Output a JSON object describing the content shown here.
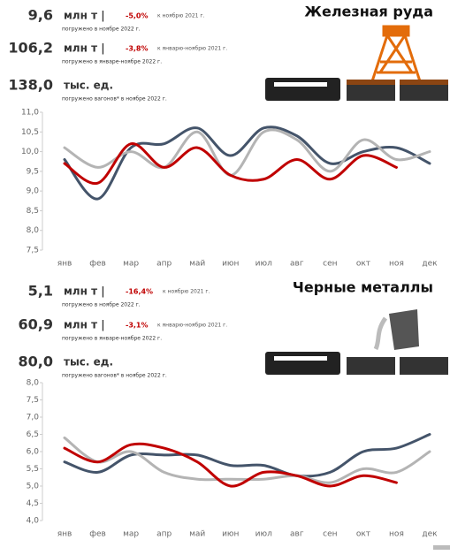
{
  "panels": [
    {
      "title": "Железная руда",
      "stats": [
        {
          "value": "9,6",
          "unit": "млн т |",
          "change": "-5,0%",
          "change_note": "к ноябрю 2021 г.",
          "note": "погружено в ноябре 2022 г."
        },
        {
          "value": "106,2",
          "unit": "млн т |",
          "change": "-3,8%",
          "change_note": "к январю-ноябрю 2021 г.",
          "note": "погружено в январе-ноябре 2022 г."
        },
        {
          "value": "138,0",
          "unit": "тыс. ед.",
          "note": "погружено вагонов* в ноябре 2022 г."
        }
      ]
    },
    {
      "title": "Черные металлы",
      "stats": [
        {
          "value": "5,1",
          "unit": "млн т |",
          "change": "-16,4%",
          "change_note": "к ноябрю 2021 г.",
          "note": "погружено в ноябре 2022 г."
        },
        {
          "value": "60,9",
          "unit": "млн т |",
          "change": "-3,1%",
          "change_note": "к январю-ноябрю 2021 г.",
          "note": "погружено в январе-ноябре 2022 г."
        },
        {
          "value": "80,0",
          "unit": "тыс. ед.",
          "note": "погружено вагонов* в ноябре 2022 г."
        }
      ]
    }
  ],
  "chart_data": [
    {
      "type": "line",
      "categories": [
        "янв",
        "фев",
        "мар",
        "апр",
        "май",
        "июн",
        "июл",
        "авг",
        "сен",
        "окт",
        "ноя",
        "дек"
      ],
      "ylim": [
        7.5,
        11.0
      ],
      "yticks": [
        {
          "value": 7.5,
          "label": "7,5"
        },
        {
          "value": 8.0,
          "label": "8,0"
        },
        {
          "value": 8.5,
          "label": "8,5"
        },
        {
          "value": 9.0,
          "label": "9,0"
        },
        {
          "value": 9.5,
          "label": "9,5"
        },
        {
          "value": 10.0,
          "label": "10,0"
        },
        {
          "value": 10.5,
          "label": "10,5"
        },
        {
          "value": 11.0,
          "label": "11,0"
        }
      ],
      "series": [
        {
          "color": "#44546a",
          "values": [
            9.8,
            8.8,
            10.1,
            10.2,
            10.6,
            9.9,
            10.6,
            10.4,
            9.7,
            10.0,
            10.1,
            9.7
          ]
        },
        {
          "color": "#b4b4b4",
          "values": [
            10.1,
            9.6,
            10.0,
            9.6,
            10.5,
            9.4,
            10.5,
            10.3,
            9.5,
            10.3,
            9.8,
            10.0
          ]
        },
        {
          "color": "#c00000",
          "values": [
            9.7,
            9.2,
            10.2,
            9.6,
            10.1,
            9.4,
            9.3,
            9.8,
            9.3,
            9.9,
            9.6,
            null
          ]
        }
      ]
    },
    {
      "type": "line",
      "categories": [
        "янв",
        "фев",
        "мар",
        "апр",
        "май",
        "июн",
        "июл",
        "авг",
        "сен",
        "окт",
        "ноя",
        "дек"
      ],
      "ylim": [
        4.0,
        8.0
      ],
      "yticks": [
        {
          "value": 4.0,
          "label": "4,0"
        },
        {
          "value": 4.5,
          "label": "4,5"
        },
        {
          "value": 5.0,
          "label": "5,0"
        },
        {
          "value": 5.5,
          "label": "5,5"
        },
        {
          "value": 6.0,
          "label": "6,0"
        },
        {
          "value": 6.5,
          "label": "6,5"
        },
        {
          "value": 7.0,
          "label": "7,0"
        },
        {
          "value": 7.5,
          "label": "7,5"
        },
        {
          "value": 8.0,
          "label": "8,0"
        }
      ],
      "series": [
        {
          "color": "#44546a",
          "values": [
            5.7,
            5.4,
            5.9,
            5.9,
            5.9,
            5.6,
            5.6,
            5.3,
            5.4,
            6.0,
            6.1,
            6.5
          ]
        },
        {
          "color": "#b4b4b4",
          "values": [
            6.4,
            5.7,
            6.0,
            5.4,
            5.2,
            5.2,
            5.2,
            5.3,
            5.1,
            5.5,
            5.4,
            6.0
          ]
        },
        {
          "color": "#c00000",
          "values": [
            6.1,
            5.7,
            6.2,
            6.1,
            5.7,
            5.0,
            5.4,
            5.3,
            5.0,
            5.3,
            5.1,
            null
          ]
        }
      ]
    }
  ]
}
